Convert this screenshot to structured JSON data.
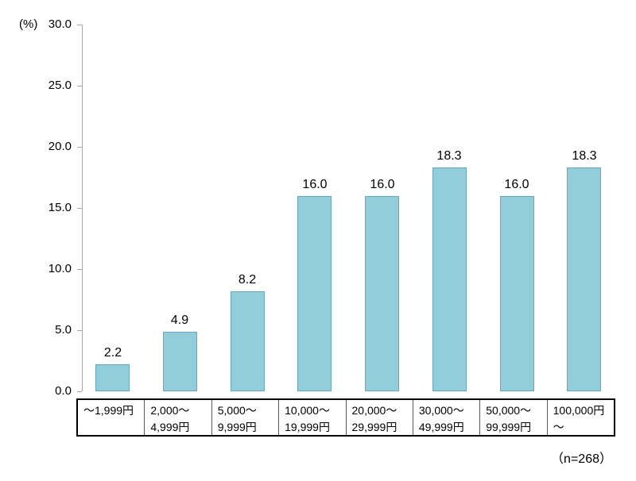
{
  "chart_data": {
    "type": "bar",
    "title": "",
    "ylabel": "(%)",
    "xlabel": "",
    "ylim": [
      0,
      30
    ],
    "yticks": [
      30,
      25,
      20,
      15,
      10,
      5,
      0
    ],
    "ytick_labels": [
      "30.0",
      "25.0",
      "20.0",
      "15.0",
      "10.0",
      "5.0",
      "0.0"
    ],
    "categories": [
      [
        "～1,999円"
      ],
      [
        "2,000～",
        "4,999円"
      ],
      [
        "5,000～",
        "9,999円"
      ],
      [
        "10,000～",
        "19,999円"
      ],
      [
        "20,000～",
        "29,999円"
      ],
      [
        "30,000～",
        "49,999円"
      ],
      [
        "50,000～",
        "99,999円"
      ],
      [
        "100,000円",
        "～"
      ]
    ],
    "values": [
      2.2,
      4.9,
      8.2,
      16.0,
      16.0,
      18.3,
      16.0,
      18.3
    ],
    "value_labels": [
      "2.2",
      "4.9",
      "8.2",
      "16.0",
      "16.0",
      "18.3",
      "16.0",
      "18.3"
    ],
    "n_label": "（n=268）",
    "grid": false,
    "legend": false,
    "bar_color": "#92CDDC",
    "bar_border_color": "#68A8BA",
    "axis_color": "#A6A6A6"
  }
}
